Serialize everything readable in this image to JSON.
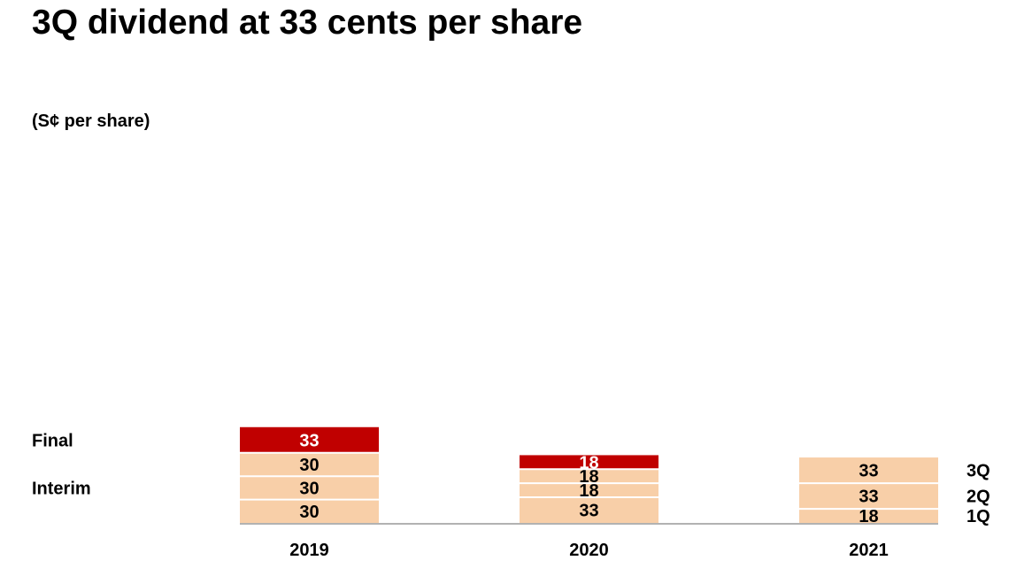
{
  "title": "3Q dividend at 33 cents per share",
  "unit_label": "(S¢ per share)",
  "colors": {
    "final": "#C00000",
    "interim": "#F8CFA8",
    "separator": "#FFFFFF",
    "axis": "#999999",
    "label_dark": "#000000",
    "label_light": "#FFFFFF"
  },
  "chart_data": {
    "type": "bar",
    "stacked": true,
    "categories": [
      "2019",
      "2020",
      "2021"
    ],
    "stacks": [
      {
        "category": "2019",
        "segments": [
          {
            "value": 30,
            "kind": "interim"
          },
          {
            "value": 30,
            "kind": "interim"
          },
          {
            "value": 30,
            "kind": "interim"
          },
          {
            "value": 33,
            "kind": "final"
          }
        ]
      },
      {
        "category": "2020",
        "segments": [
          {
            "value": 33,
            "kind": "interim"
          },
          {
            "value": 18,
            "kind": "interim"
          },
          {
            "value": 18,
            "kind": "interim"
          },
          {
            "value": 18,
            "kind": "final"
          }
        ]
      },
      {
        "category": "2021",
        "segments": [
          {
            "value": 18,
            "kind": "interim",
            "label": "1Q"
          },
          {
            "value": 33,
            "kind": "interim",
            "label": "2Q"
          },
          {
            "value": 33,
            "kind": "interim",
            "label": "3Q"
          }
        ]
      }
    ],
    "left_labels": [
      {
        "text": "Final",
        "kind": "final"
      },
      {
        "text": "Interim",
        "kind": "interim"
      }
    ],
    "xlabel": "",
    "ylabel": "",
    "grid": false,
    "legend": "none"
  }
}
